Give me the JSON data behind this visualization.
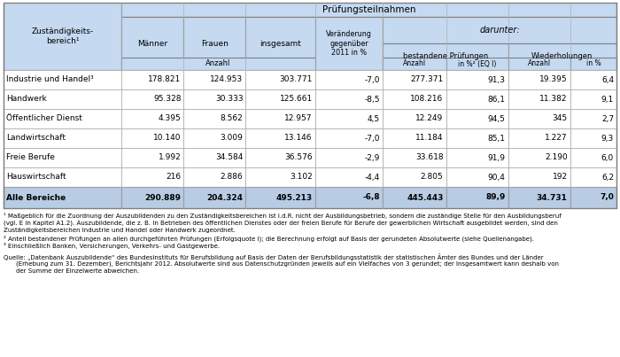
{
  "header_bg": "#c5d9f1",
  "total_bg": "#b8cce4",
  "border_dark": "#808080",
  "border_light": "#b0b0b0",
  "rows": [
    [
      "Industrie und Handel³",
      "178.821",
      "124.953",
      "303.771",
      "-7,0",
      "277.371",
      "91,3",
      "19.395",
      "6,4"
    ],
    [
      "Handwerk",
      "95.328",
      "30.333",
      "125.661",
      "-8,5",
      "108.216",
      "86,1",
      "11.382",
      "9,1"
    ],
    [
      "Öffentlicher Dienst",
      "4.395",
      "8.562",
      "12.957",
      "4,5",
      "12.249",
      "94,5",
      "345",
      "2,7"
    ],
    [
      "Landwirtschaft",
      "10.140",
      "3.009",
      "13.146",
      "-7,0",
      "11.184",
      "85,1",
      "1.227",
      "9,3"
    ],
    [
      "Freie Berufe",
      "1.992",
      "34.584",
      "36.576",
      "-2,9",
      "33.618",
      "91,9",
      "2.190",
      "6,0"
    ],
    [
      "Hauswirtschaft",
      "216",
      "2.886",
      "3.102",
      "-4,4",
      "2.805",
      "90,4",
      "192",
      "6,2"
    ]
  ],
  "total_row": [
    "Alle Bereiche",
    "290.889",
    "204.324",
    "495.213",
    "-6,8",
    "445.443",
    "89,9",
    "34.731",
    "7,0"
  ],
  "fn1a": "¹ Maßgeblich für die Zuordnung der Auszubildenden zu den Zuständigkeitsbereichen ist i.d.R. nicht der Ausbildungsbetrieb, sondern die zuständige Stelle für den Ausbildungsberuf",
  "fn1b": "(vgl. E in Kapitel A1.2). Auszubildende, die z. B. in Betrieben des öffentlichen Dienstes oder der freien Berufe für Berufe der gewerblichen Wirtschaft ausgebildet werden, sind den",
  "fn1c": "Zuständigkeitsbereichen Industrie und Handel oder Handwerk zugeordnet.",
  "fn2": "² Anteil bestandener Prüfungen an allen durchgeführten Prüfungen (Erfolgsquote I); die Berechnung erfolgt auf Basis der gerundeten Absolutwerte (siehe Quellenangabe).",
  "fn3": "³ Einschließlich Banken, Versicherungen, Verkehrs- und Gastgewerbe.",
  "q1": "Quelle: „Datenbank Auszubildende“ des Bundesinstituts für Berufsbildung auf Basis der Daten der Berufsbildungsstatistik der statistischen Ämter des Bundes und der Länder",
  "q2": "    (Erhebung zum 31. Dezember), Berichtsjahr 2012. Absolutwerte sind aus Datenschutzgründen jeweils auf ein Vielfaches von 3 gerundet; der Insgesamtwert kann deshalb von",
  "q3": "    der Summe der Einzelwerte abweichen."
}
